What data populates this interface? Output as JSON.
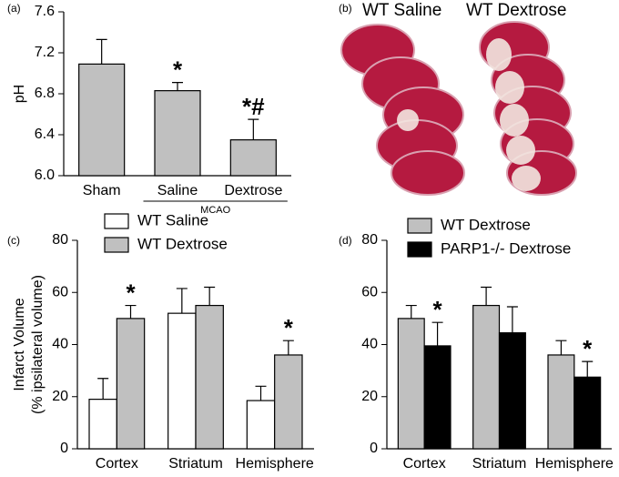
{
  "chart_data": [
    {
      "type": "bar",
      "panel_label": "(a)",
      "ylabel": [
        "pH"
      ],
      "categories": [
        "Sham",
        "Saline",
        "Dextrose"
      ],
      "group_label": "MCAO",
      "series": [
        {
          "color": "#c0c0c0",
          "values": [
            7.09,
            6.83,
            6.35
          ],
          "errors": [
            0.24,
            0.08,
            0.2
          ],
          "annotations": [
            null,
            "*",
            "*#"
          ]
        }
      ],
      "ylim": [
        6,
        7.6
      ],
      "yticks": [
        {
          "value": 6,
          "label": "6.0"
        },
        {
          "value": 6.4,
          "label": "6.4"
        },
        {
          "value": 6.8,
          "label": "6.8"
        },
        {
          "value": 7.2,
          "label": "7.2"
        },
        {
          "value": 7.6,
          "label": "7.6"
        }
      ]
    },
    {
      "type": "image",
      "panel_label": "(b)",
      "labels": [
        "WT Saline",
        "WT Dextrose"
      ]
    },
    {
      "type": "bar",
      "panel_label": "(c)",
      "ylabel": [
        "Infarct Volume",
        "(% ipsilateral volume)"
      ],
      "categories": [
        "Cortex",
        "Striatum",
        "Hemisphere"
      ],
      "series": [
        {
          "name": "WT Saline",
          "color": "#ffffff",
          "values": [
            19,
            52,
            18.5
          ],
          "errors": [
            8,
            9.5,
            5.5
          ],
          "annotations": [
            null,
            null,
            null
          ]
        },
        {
          "name": "WT Dextrose",
          "color": "#c0c0c0",
          "values": [
            50,
            55,
            36
          ],
          "errors": [
            5,
            7,
            5.5
          ],
          "annotations": [
            "*",
            null,
            "*"
          ]
        }
      ],
      "ylim": [
        0,
        80
      ],
      "yticks": [
        0,
        20,
        40,
        60,
        80
      ]
    },
    {
      "type": "bar",
      "panel_label": "(d)",
      "ylabel": [],
      "categories": [
        "Cortex",
        "Striatum",
        "Hemisphere"
      ],
      "series": [
        {
          "name": "WT Dextrose",
          "color": "#c0c0c0",
          "values": [
            50,
            55,
            36
          ],
          "errors": [
            5,
            7,
            5.5
          ],
          "annotations": [
            null,
            null,
            null
          ]
        },
        {
          "name": "PARP1-/- Dextrose",
          "color": "#000000",
          "values": [
            39.5,
            44.5,
            27.5
          ],
          "errors": [
            9,
            10,
            6
          ],
          "annotations": [
            "*",
            null,
            "*"
          ]
        }
      ],
      "ylim": [
        0,
        80
      ],
      "yticks": [
        0,
        20,
        40,
        60,
        80
      ]
    }
  ]
}
